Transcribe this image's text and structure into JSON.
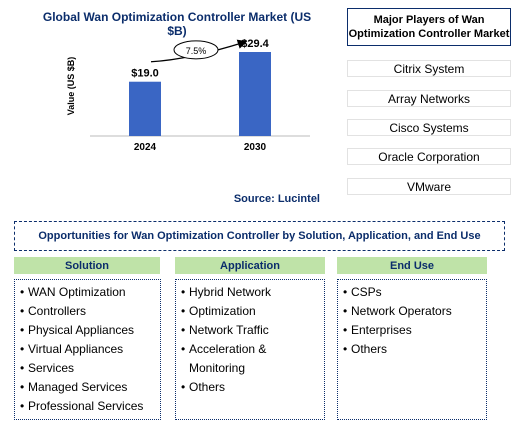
{
  "chart_data": {
    "type": "bar",
    "title": "Global Wan Optimization Controller Market (US $B)",
    "categories": [
      "2024",
      "2030"
    ],
    "values": [
      19.0,
      29.4
    ],
    "value_labels": [
      "$19.0",
      "$29.4"
    ],
    "ylabel": "Value (US $B)",
    "xlabel": "",
    "ylim": [
      0,
      35
    ],
    "annotation": "7.5%",
    "bar_color": "#3a66c4",
    "grid": false,
    "source": "Source: Lucintel"
  },
  "players": {
    "title": "Major Players of Wan Optimization Controller Market",
    "items": [
      "Citrix System",
      "Array Networks",
      "Cisco Systems",
      "Oracle Corporation",
      "VMware"
    ]
  },
  "opportunities": {
    "title": "Opportunities for Wan Optimization Controller by Solution, Application, and End Use",
    "columns": [
      {
        "heading": "Solution",
        "items": [
          "WAN Optimization",
          "Controllers",
          "Physical Appliances",
          "Virtual Appliances",
          "Services",
          "Managed Services",
          "Professional Services"
        ]
      },
      {
        "heading": "Application",
        "items": [
          "Hybrid Network",
          "Optimization",
          "Network Traffic",
          "Acceleration & Monitoring",
          "Others"
        ]
      },
      {
        "heading": "End Use",
        "items": [
          "CSPs",
          "Network Operators",
          "Enterprises",
          "Others"
        ]
      }
    ]
  }
}
